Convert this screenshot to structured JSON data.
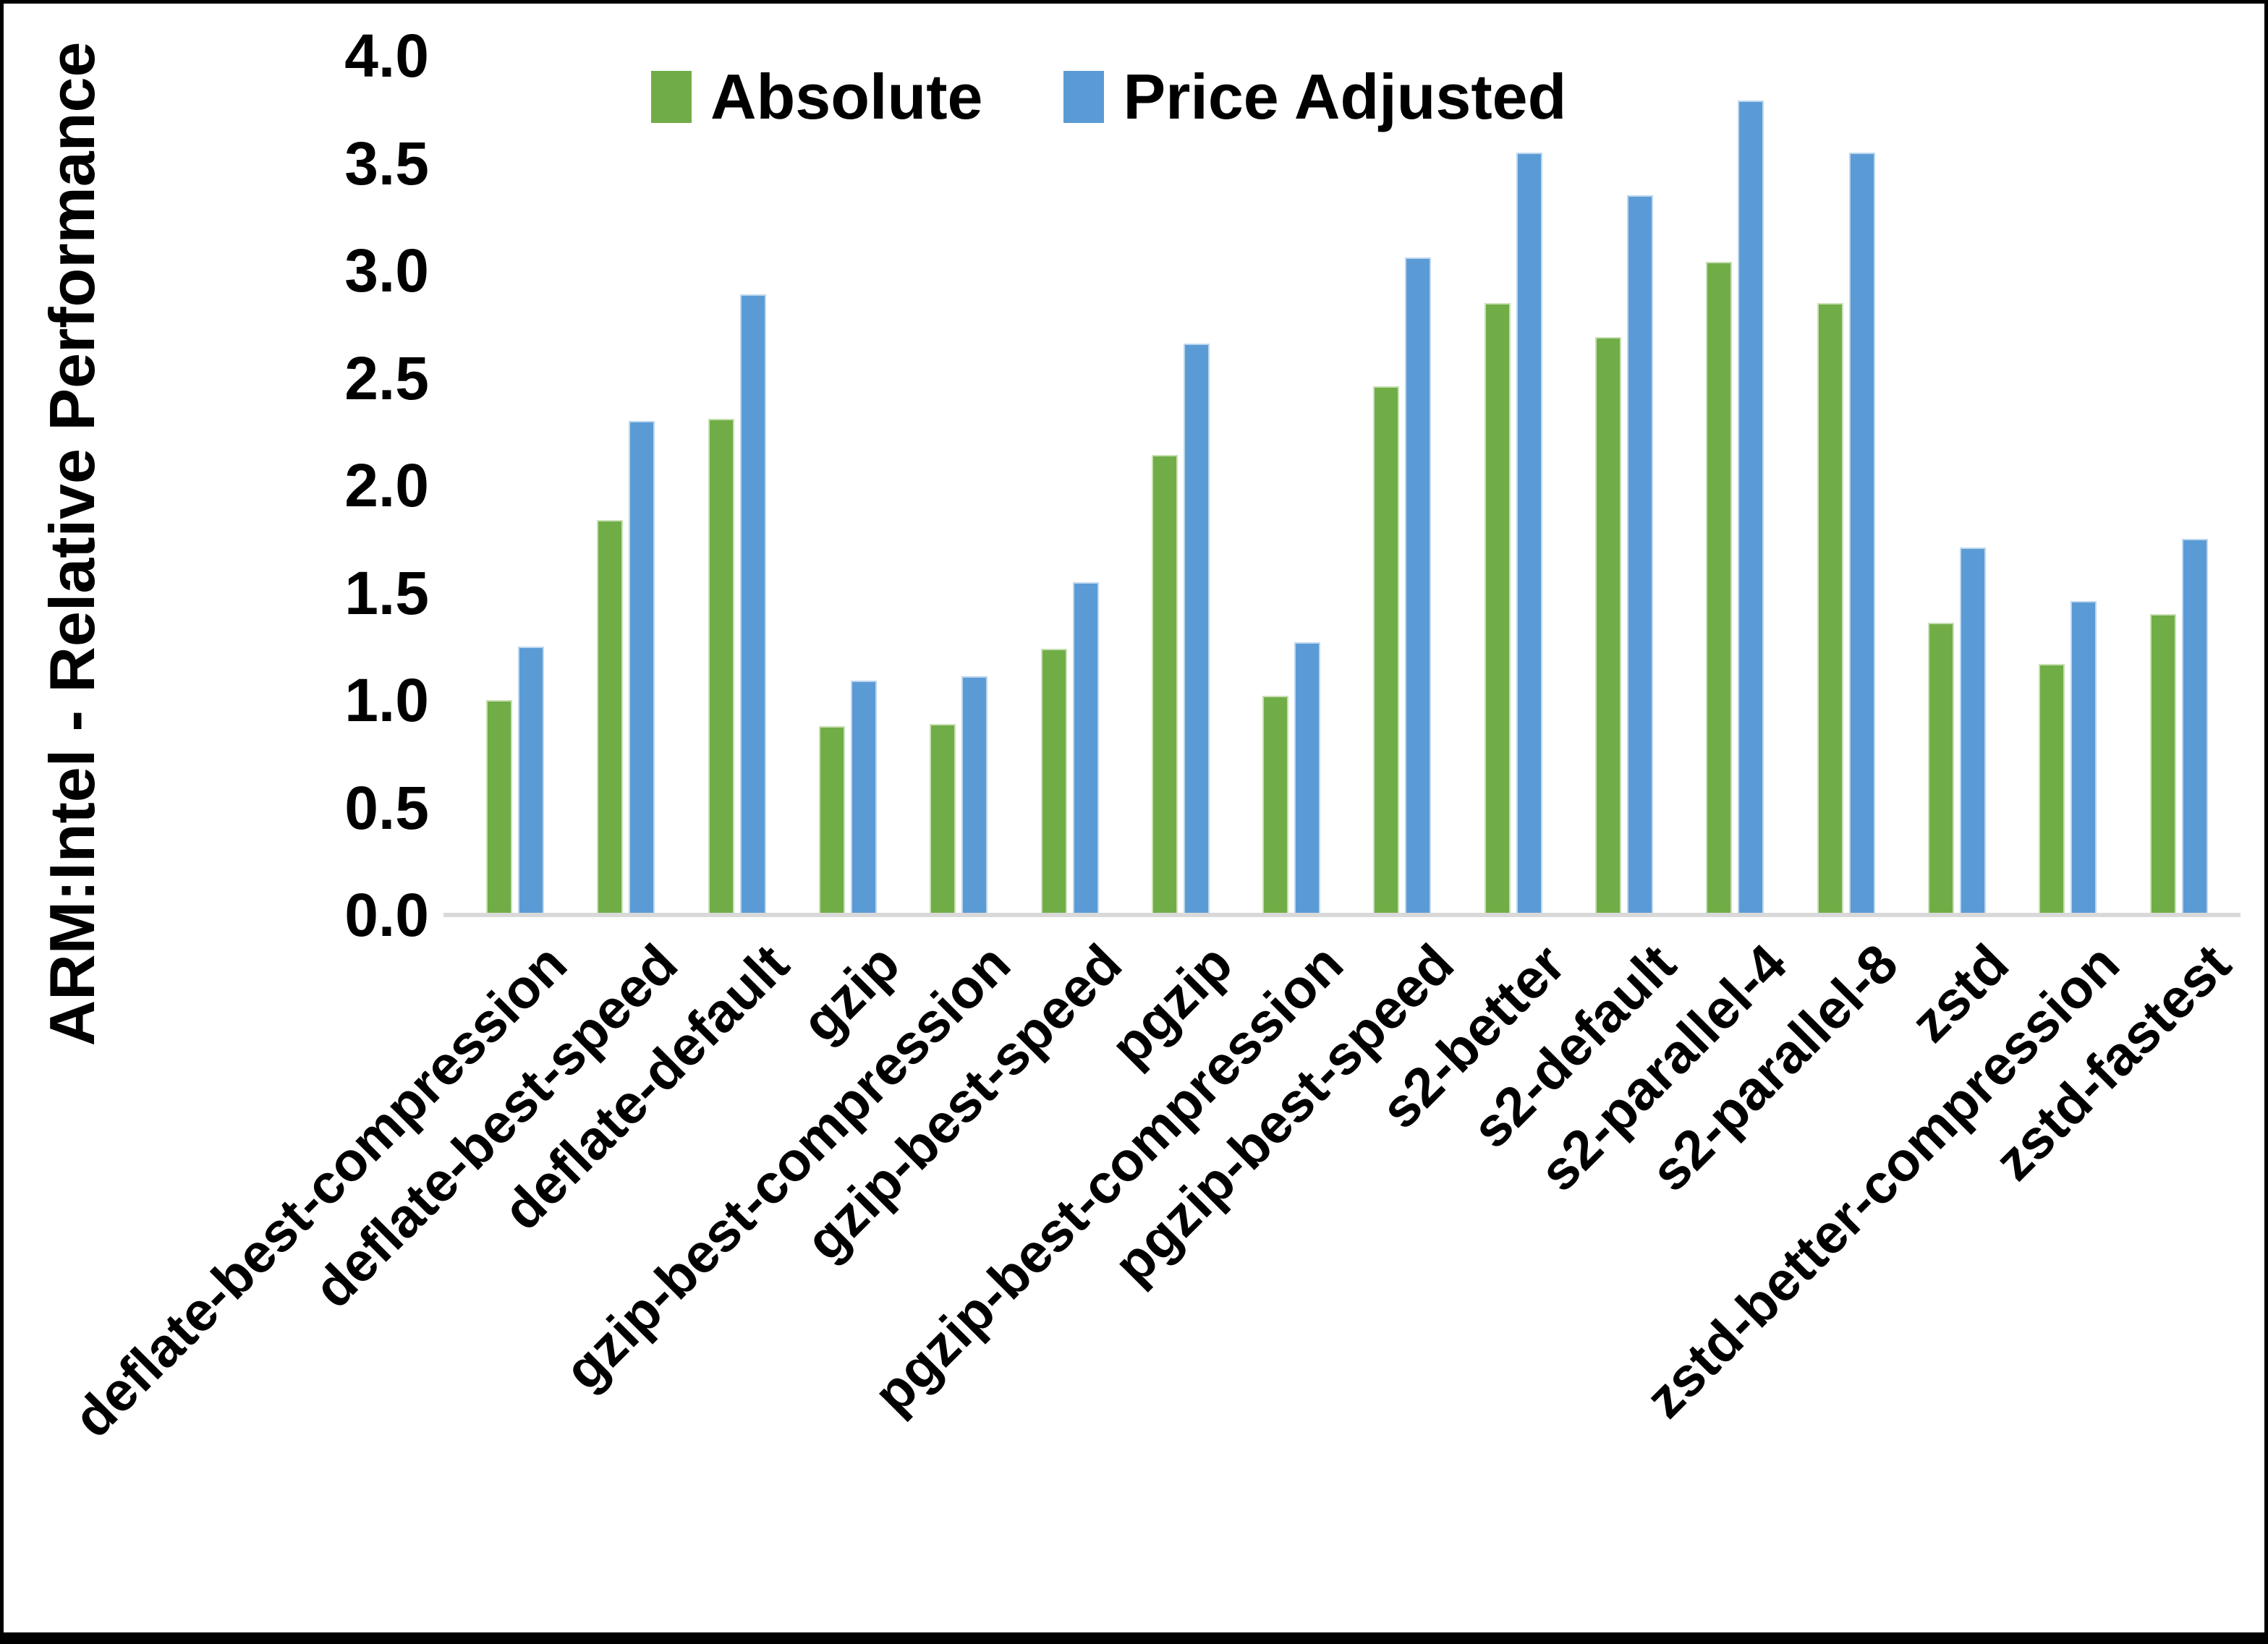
{
  "chart_data": {
    "type": "bar",
    "title": "",
    "xlabel": "",
    "ylabel": "ARM:Intel - Relative Performance",
    "ylim": [
      0.0,
      4.0
    ],
    "ytick_labels": [
      "0.0",
      "0.5",
      "1.0",
      "1.5",
      "2.0",
      "2.5",
      "3.0",
      "3.5",
      "4.0"
    ],
    "grid": false,
    "legend_position": "top-center",
    "axis_line_color": "#d9d9d9",
    "background_color": "#ffffff",
    "categories": [
      "deflate-best-compression",
      "deflate-best-speed",
      "deflate-default",
      "gzip",
      "gzip-best-compression",
      "gzip-best-speed",
      "pgzip",
      "pgzip-best-compression",
      "pgzip-best-speed",
      "s2-better",
      "s2-default",
      "s2-parallel-4",
      "s2-parallel-8",
      "zstd",
      "zstd-better-compression",
      "zstd-fastest"
    ],
    "series": [
      {
        "name": "Absolute",
        "color": "#70AD47",
        "values": [
          1.0,
          1.84,
          2.31,
          0.88,
          0.89,
          1.24,
          2.14,
          1.02,
          2.46,
          2.85,
          2.69,
          3.04,
          2.85,
          1.36,
          1.17,
          1.4
        ]
      },
      {
        "name": "Price Adjusted",
        "color": "#5B9BD5",
        "values": [
          1.25,
          2.3,
          2.89,
          1.09,
          1.11,
          1.55,
          2.66,
          1.27,
          3.06,
          3.55,
          3.35,
          3.79,
          3.55,
          1.71,
          1.46,
          1.75
        ]
      }
    ]
  }
}
